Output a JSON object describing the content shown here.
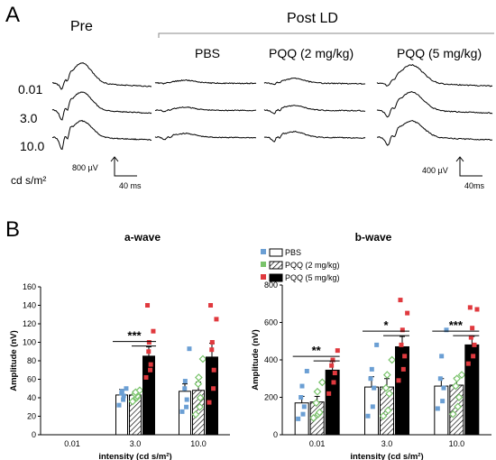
{
  "panel_a": {
    "label": "A",
    "pre_label": "Pre",
    "post_label": "Post LD",
    "columns": [
      "PBS",
      "PQQ (2 mg/kg)",
      "PQQ (5 mg/kg)"
    ],
    "rows": [
      "0.01",
      "3.0",
      "10.0"
    ],
    "unit_label": "cd s/m²",
    "scalebar_left": {
      "amp": "800 µV",
      "time": "40 ms"
    },
    "scalebar_right": {
      "amp": "400 µV",
      "time": "40ms"
    }
  },
  "panel_b": {
    "label": "B"
  },
  "legend": {
    "items": [
      {
        "label": "PBS",
        "color": "#ffffff",
        "hatch": false
      },
      {
        "label": "PQQ (2 mg/kg)",
        "color": "#ffffff",
        "hatch": true
      },
      {
        "label": "PQQ (5 mg/kg)",
        "color": "#000000",
        "hatch": false
      }
    ],
    "dot_colors": [
      "#6b9fd4",
      "#79c36a",
      "#e0393e"
    ]
  },
  "chart_data": [
    {
      "type": "bar",
      "title": "a-wave",
      "xlabel": "intensity (cd s/m²)",
      "ylabel": "Amplitude (nV)",
      "ylim": [
        0,
        160
      ],
      "yticks": [
        0,
        20,
        40,
        60,
        80,
        100,
        120,
        140,
        160
      ],
      "categories": [
        "0.01",
        "3.0",
        "10.0"
      ],
      "series": [
        {
          "name": "PBS",
          "values": [
            null,
            43,
            47
          ],
          "errors": [
            null,
            6,
            8
          ],
          "points": [
            [],
            [
              32,
              38,
              42,
              45,
              47,
              50
            ],
            [
              25,
              30,
              38,
              50,
              58,
              93
            ]
          ]
        },
        {
          "name": "PQQ (2 mg/kg)",
          "values": [
            null,
            43,
            48
          ],
          "errors": [
            null,
            4,
            9
          ],
          "points": [
            [],
            [
              36,
              40,
              42,
              44,
              46,
              48
            ],
            [
              22,
              30,
              40,
              55,
              62,
              82
            ]
          ]
        },
        {
          "name": "PQQ (5 mg/kg)",
          "values": [
            null,
            85,
            84
          ],
          "errors": [
            null,
            10,
            15
          ],
          "points": [
            [],
            [
              62,
              70,
              76,
              90,
              100,
              112,
              140
            ],
            [
              35,
              50,
              70,
              92,
              100,
              125,
              140
            ]
          ]
        }
      ],
      "significance": [
        {
          "category": "3.0",
          "stars": [
            "***"
          ]
        }
      ]
    },
    {
      "type": "bar",
      "title": "b-wave",
      "xlabel": "intensity (cd s/m²)",
      "ylabel": "Amplitude (nV)",
      "ylim": [
        0,
        800
      ],
      "yticks": [
        0,
        200,
        400,
        600,
        800
      ],
      "categories": [
        "0.01",
        "3.0",
        "10.0"
      ],
      "series": [
        {
          "name": "PBS",
          "values": [
            170,
            255,
            260
          ],
          "errors": [
            35,
            55,
            40
          ],
          "points": [
            [
              85,
              110,
              150,
              200,
              260,
              340
            ],
            [
              100,
              150,
              250,
              300,
              350,
              480
            ],
            [
              140,
              180,
              250,
              300,
              420,
              560
            ]
          ]
        },
        {
          "name": "PQQ (2 mg/kg)",
          "values": [
            175,
            255,
            265
          ],
          "errors": [
            30,
            45,
            40
          ],
          "points": [
            [
              90,
              110,
              120,
              170,
              230,
              280
            ],
            [
              100,
              130,
              220,
              250,
              320,
              400
            ],
            [
              110,
              150,
              200,
              260,
              300,
              320
            ]
          ]
        },
        {
          "name": "PQQ (5 mg/kg)",
          "values": [
            345,
            470,
            480
          ],
          "errors": [
            45,
            55,
            45
          ],
          "points": [
            [
              220,
              280,
              330,
              370,
              400,
              450
            ],
            [
              290,
              350,
              420,
              480,
              560,
              650,
              720
            ],
            [
              380,
              420,
              480,
              520,
              570,
              670,
              680
            ]
          ]
        }
      ],
      "significance": [
        {
          "category": "0.01",
          "stars": [
            "**"
          ]
        },
        {
          "category": "3.0",
          "stars": [
            "*"
          ]
        },
        {
          "category": "10.0",
          "stars": [
            "***"
          ]
        }
      ]
    }
  ]
}
